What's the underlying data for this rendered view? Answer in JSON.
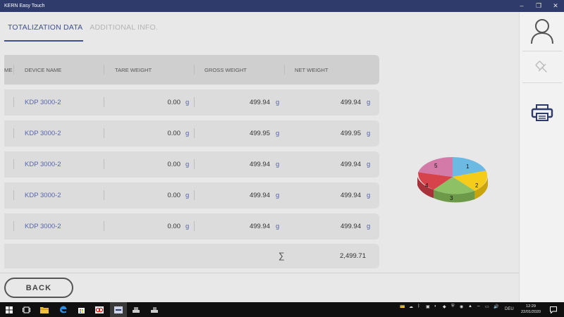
{
  "window": {
    "title": "KERN Easy Touch",
    "minimize": "–",
    "restore": "❐",
    "close": "✕"
  },
  "tabs": [
    {
      "label": "TOTALIZATION DATA",
      "active": true
    },
    {
      "label": "ADDITIONAL INFO.",
      "active": false
    }
  ],
  "table": {
    "columns": {
      "name": "ME",
      "device": "DEVICE NAME",
      "tare": "TARE WEIGHT",
      "gross": "GROSS WEIGHT",
      "net": "NET WEIGHT"
    },
    "rows": [
      {
        "device": "KDP 3000-2",
        "tare": "0.00",
        "tare_unit": "g",
        "gross": "499.94",
        "gross_unit": "g",
        "net": "499.94",
        "net_unit": "g"
      },
      {
        "device": "KDP 3000-2",
        "tare": "0.00",
        "tare_unit": "g",
        "gross": "499.95",
        "gross_unit": "g",
        "net": "499.95",
        "net_unit": "g"
      },
      {
        "device": "KDP 3000-2",
        "tare": "0.00",
        "tare_unit": "g",
        "gross": "499.94",
        "gross_unit": "g",
        "net": "499.94",
        "net_unit": "g"
      },
      {
        "device": "KDP 3000-2",
        "tare": "0.00",
        "tare_unit": "g",
        "gross": "499.94",
        "gross_unit": "g",
        "net": "499.94",
        "net_unit": "g"
      },
      {
        "device": "KDP 3000-2",
        "tare": "0.00",
        "tare_unit": "g",
        "gross": "499.94",
        "gross_unit": "g",
        "net": "499.94",
        "net_unit": "g"
      }
    ],
    "sum_symbol": "∑",
    "total": "2,499.71"
  },
  "back_label": "BACK",
  "pie": {
    "labels": [
      "1",
      "2",
      "3",
      "4",
      "5"
    ],
    "colors": [
      "#6cb9e3",
      "#f5cc1a",
      "#8ec066",
      "#d6434a",
      "#d47aa8"
    ],
    "side_colors": [
      "#4f91b4",
      "#c9a40c",
      "#6c9a48",
      "#a9323a",
      "#a95c85"
    ]
  },
  "right_panel": {
    "icons": [
      "user-icon",
      "pin-icon",
      "printer-icon"
    ]
  },
  "taskbar": {
    "icons": [
      "windows-start-icon",
      "task-view-icon",
      "file-explorer-icon",
      "edge-icon",
      "store-icon",
      "app-red-icon",
      "kern-easy-touch-icon",
      "scale-app-icon",
      "scale-app-2-icon"
    ],
    "language": "DEU",
    "time": "12:29",
    "date": "22/01/2020"
  },
  "accent_color": "#3f4f92",
  "link_color": "#5866b0"
}
